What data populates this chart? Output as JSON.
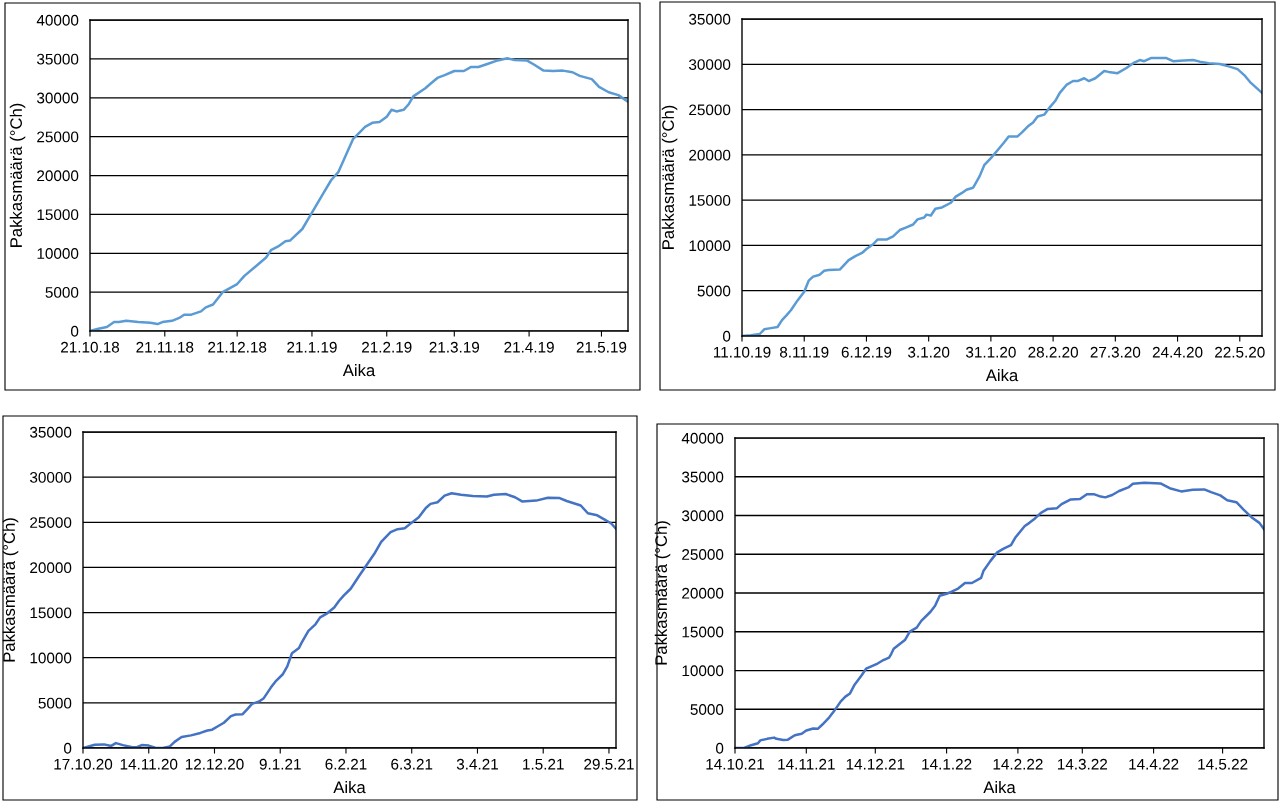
{
  "chart_data": [
    {
      "type": "line",
      "xlabel": "Aika",
      "ylabel": "Pakkasmäärä (°Ch)",
      "xlim": [
        "2018-10-21",
        "2019-06-01"
      ],
      "ylim": [
        0,
        40000
      ],
      "yticks": [
        0,
        5000,
        10000,
        15000,
        20000,
        25000,
        30000,
        35000,
        40000
      ],
      "xticks": [
        {
          "value": "2018-10-21",
          "label": "21.10.18"
        },
        {
          "value": "2018-11-21",
          "label": "21.11.18"
        },
        {
          "value": "2018-12-21",
          "label": "21.12.18"
        },
        {
          "value": "2019-01-21",
          "label": "21.1.19"
        },
        {
          "value": "2019-02-21",
          "label": "21.2.19"
        },
        {
          "value": "2019-03-21",
          "label": "21.3.19"
        },
        {
          "value": "2019-04-21",
          "label": "21.4.19"
        },
        {
          "value": "2019-05-21",
          "label": "21.5.19"
        }
      ],
      "grid": "y",
      "series": [
        {
          "color": "#5b9bd5",
          "x": [
            "2018-10-21",
            "2018-10-24",
            "2018-10-28",
            "2018-10-31",
            "2018-11-02",
            "2018-11-05",
            "2018-11-10",
            "2018-11-15",
            "2018-11-18",
            "2018-11-20",
            "2018-11-24",
            "2018-11-27",
            "2018-11-29",
            "2018-12-02",
            "2018-12-06",
            "2018-12-08",
            "2018-12-11",
            "2018-12-15",
            "2018-12-21",
            "2018-12-24",
            "2018-12-29",
            "2019-01-02",
            "2019-01-04",
            "2019-01-07",
            "2019-01-10",
            "2019-01-12",
            "2019-01-17",
            "2019-01-21",
            "2019-01-26",
            "2019-01-29",
            "2019-02-01",
            "2019-02-04",
            "2019-02-07",
            "2019-02-10",
            "2019-02-12",
            "2019-02-15",
            "2019-02-18",
            "2019-02-21",
            "2019-02-23",
            "2019-02-25",
            "2019-02-28",
            "2019-03-02",
            "2019-03-04",
            "2019-03-09",
            "2019-03-11",
            "2019-03-14",
            "2019-03-17",
            "2019-03-21",
            "2019-03-25",
            "2019-03-28",
            "2019-03-31",
            "2019-04-04",
            "2019-04-08",
            "2019-04-12",
            "2019-04-15",
            "2019-04-20",
            "2019-04-23",
            "2019-04-27",
            "2019-05-01",
            "2019-05-05",
            "2019-05-09",
            "2019-05-12",
            "2019-05-17",
            "2019-05-20",
            "2019-05-24",
            "2019-05-28",
            "2019-06-01"
          ],
          "values": [
            0,
            260,
            520,
            1150,
            1150,
            1310,
            1150,
            1050,
            890,
            1150,
            1310,
            1680,
            2100,
            2100,
            2520,
            3040,
            3410,
            4990,
            6040,
            7090,
            8400,
            9450,
            10390,
            10870,
            11550,
            11650,
            13120,
            15220,
            17850,
            19420,
            20470,
            22570,
            24670,
            25620,
            26250,
            26770,
            26880,
            27560,
            28450,
            28240,
            28450,
            29130,
            30180,
            31230,
            31760,
            32550,
            32910,
            33440,
            33440,
            33960,
            33960,
            34380,
            34800,
            35070,
            34860,
            34800,
            34280,
            33490,
            33440,
            33490,
            33280,
            32810,
            32390,
            31390,
            30710,
            30340,
            29500
          ]
        }
      ]
    },
    {
      "type": "line",
      "xlabel": "Aika",
      "ylabel": "Pakkasmäärä (°Ch)",
      "xlim": [
        "2019-10-11",
        "2020-06-01"
      ],
      "ylim": [
        0,
        35000
      ],
      "yticks": [
        0,
        5000,
        10000,
        15000,
        20000,
        25000,
        30000,
        35000
      ],
      "xticks": [
        {
          "value": "2019-10-11",
          "label": "11.10.19"
        },
        {
          "value": "2019-11-08",
          "label": "8.11.19"
        },
        {
          "value": "2019-12-06",
          "label": "6.12.19"
        },
        {
          "value": "2020-01-03",
          "label": "3.1.20"
        },
        {
          "value": "2020-01-31",
          "label": "31.1.20"
        },
        {
          "value": "2020-02-28",
          "label": "28.2.20"
        },
        {
          "value": "2020-03-27",
          "label": "27.3.20"
        },
        {
          "value": "2020-04-24",
          "label": "24.4.20"
        },
        {
          "value": "2020-05-22",
          "label": "22.5.20"
        }
      ],
      "grid": "y",
      "series": [
        {
          "color": "#5b9bd5",
          "x": [
            "2019-10-11",
            "2019-10-15",
            "2019-10-19",
            "2019-10-21",
            "2019-10-24",
            "2019-10-27",
            "2019-10-29",
            "2019-10-31",
            "2019-11-02",
            "2019-11-05",
            "2019-11-08",
            "2019-11-10",
            "2019-11-12",
            "2019-11-15",
            "2019-11-17",
            "2019-11-19",
            "2019-11-24",
            "2019-11-26",
            "2019-11-28",
            "2019-12-01",
            "2019-12-04",
            "2019-12-06",
            "2019-12-09",
            "2019-12-11",
            "2019-12-15",
            "2019-12-18",
            "2019-12-21",
            "2019-12-24",
            "2019-12-27",
            "2019-12-29",
            "2020-01-01",
            "2020-01-02",
            "2020-01-04",
            "2020-01-06",
            "2020-01-09",
            "2020-01-13",
            "2020-01-15",
            "2020-01-18",
            "2020-01-20",
            "2020-01-23",
            "2020-01-24",
            "2020-01-26",
            "2020-01-28",
            "2020-01-31",
            "2020-02-03",
            "2020-02-06",
            "2020-02-08",
            "2020-02-12",
            "2020-02-14",
            "2020-02-17",
            "2020-02-19",
            "2020-02-21",
            "2020-02-24",
            "2020-02-26",
            "2020-02-29",
            "2020-03-02",
            "2020-03-05",
            "2020-03-08",
            "2020-03-10",
            "2020-03-13",
            "2020-03-15",
            "2020-03-18",
            "2020-03-22",
            "2020-03-24",
            "2020-03-28",
            "2020-04-01",
            "2020-04-04",
            "2020-04-07",
            "2020-04-09",
            "2020-04-12",
            "2020-04-19",
            "2020-04-22",
            "2020-04-25",
            "2020-05-01",
            "2020-05-04",
            "2020-05-08",
            "2020-05-13",
            "2020-05-17",
            "2020-05-21",
            "2020-05-24",
            "2020-05-27",
            "2020-06-01"
          ],
          "values": [
            0,
            90,
            220,
            740,
            870,
            1000,
            1750,
            2270,
            2840,
            3930,
            4890,
            6110,
            6550,
            6770,
            7200,
            7290,
            7330,
            7860,
            8380,
            8820,
            9170,
            9600,
            10130,
            10650,
            10650,
            11000,
            11700,
            12000,
            12310,
            12880,
            13090,
            13400,
            13310,
            14050,
            14190,
            14710,
            15360,
            15800,
            16150,
            16370,
            16800,
            17680,
            18860,
            19640,
            20510,
            21390,
            22040,
            22040,
            22480,
            23220,
            23570,
            24230,
            24440,
            25100,
            25970,
            26840,
            27720,
            28150,
            28150,
            28460,
            28150,
            28460,
            29250,
            29160,
            29020,
            29590,
            30120,
            30470,
            30340,
            30690,
            30690,
            30340,
            30380,
            30470,
            30290,
            30120,
            30030,
            29770,
            29460,
            28810,
            27940,
            26840
          ]
        }
      ]
    },
    {
      "type": "line",
      "xlabel": "Aika",
      "ylabel": "Pakkasmäärä (°Ch)",
      "xlim": [
        "2020-10-17",
        "2021-06-01"
      ],
      "ylim": [
        0,
        35000
      ],
      "yticks": [
        0,
        5000,
        10000,
        15000,
        20000,
        25000,
        30000,
        35000
      ],
      "xticks": [
        {
          "value": "2020-10-17",
          "label": "17.10.20"
        },
        {
          "value": "2020-11-14",
          "label": "14.11.20"
        },
        {
          "value": "2020-12-12",
          "label": "12.12.20"
        },
        {
          "value": "2021-01-09",
          "label": "9.1.21"
        },
        {
          "value": "2021-02-06",
          "label": "6.2.21"
        },
        {
          "value": "2021-03-06",
          "label": "6.3.21"
        },
        {
          "value": "2021-04-03",
          "label": "3.4.21"
        },
        {
          "value": "2021-05-01",
          "label": "1.5.21"
        },
        {
          "value": "2021-05-29",
          "label": "29.5.21"
        }
      ],
      "grid": "y",
      "series": [
        {
          "color": "#4472c4",
          "x": [
            "2020-10-17",
            "2020-10-22",
            "2020-10-26",
            "2020-10-29",
            "2020-10-31",
            "2020-11-03",
            "2020-11-07",
            "2020-11-09",
            "2020-11-11",
            "2020-11-14",
            "2020-11-17",
            "2020-11-20",
            "2020-11-23",
            "2020-11-25",
            "2020-11-28",
            "2020-12-02",
            "2020-12-06",
            "2020-12-09",
            "2020-12-11",
            "2020-12-14",
            "2020-12-16",
            "2020-12-19",
            "2020-12-21",
            "2020-12-24",
            "2020-12-26",
            "2020-12-28",
            "2020-12-31",
            "2021-01-02",
            "2021-01-05",
            "2021-01-07",
            "2021-01-10",
            "2021-01-12",
            "2021-01-14",
            "2021-01-17",
            "2021-01-18",
            "2021-01-21",
            "2021-01-24",
            "2021-01-26",
            "2021-01-29",
            "2021-02-01",
            "2021-02-03",
            "2021-02-05",
            "2021-02-08",
            "2021-02-12",
            "2021-02-15",
            "2021-02-18",
            "2021-02-21",
            "2021-02-25",
            "2021-02-28",
            "2021-03-03",
            "2021-03-06",
            "2021-03-09",
            "2021-03-12",
            "2021-03-14",
            "2021-03-17",
            "2021-03-20",
            "2021-03-23",
            "2021-03-27",
            "2021-04-01",
            "2021-04-07",
            "2021-04-10",
            "2021-04-15",
            "2021-04-19",
            "2021-04-22",
            "2021-04-28",
            "2021-05-03",
            "2021-05-08",
            "2021-05-11",
            "2021-05-17",
            "2021-05-20",
            "2021-05-24",
            "2021-05-27",
            "2021-05-30",
            "2021-06-01"
          ],
          "values": [
            0,
            360,
            400,
            230,
            540,
            320,
            90,
            90,
            320,
            270,
            0,
            0,
            180,
            680,
            1220,
            1400,
            1670,
            1940,
            2030,
            2490,
            2800,
            3530,
            3710,
            3750,
            4300,
            4880,
            5160,
            5520,
            6690,
            7370,
            8140,
            9040,
            10490,
            11080,
            11620,
            12980,
            13700,
            14470,
            14920,
            15560,
            16280,
            16870,
            17640,
            19220,
            20350,
            21480,
            22840,
            23920,
            24240,
            24330,
            24960,
            25550,
            26590,
            27040,
            27220,
            27950,
            28220,
            28040,
            27900,
            27860,
            28040,
            28130,
            27770,
            27310,
            27400,
            27720,
            27680,
            27360,
            26860,
            26000,
            25770,
            25320,
            24870,
            24280
          ]
        }
      ]
    },
    {
      "type": "line",
      "xlabel": "Aika",
      "ylabel": "Pakkasmäärä (°Ch)",
      "xlim": [
        "2021-10-14",
        "2022-06-01"
      ],
      "ylim": [
        0,
        40000
      ],
      "yticks": [
        0,
        5000,
        10000,
        15000,
        20000,
        25000,
        30000,
        35000,
        40000
      ],
      "xticks": [
        {
          "value": "2021-10-14",
          "label": "14.10.21"
        },
        {
          "value": "2021-11-14",
          "label": "14.11.21"
        },
        {
          "value": "2021-12-14",
          "label": "14.12.21"
        },
        {
          "value": "2022-01-14",
          "label": "14.1.22"
        },
        {
          "value": "2022-02-14",
          "label": "14.2.22"
        },
        {
          "value": "2022-03-14",
          "label": "14.3.22"
        },
        {
          "value": "2022-04-14",
          "label": "14.4.22"
        },
        {
          "value": "2022-05-14",
          "label": "14.5.22"
        }
      ],
      "grid": "y",
      "series": [
        {
          "color": "#4472c4",
          "x": [
            "2021-10-14",
            "2021-10-18",
            "2021-10-21",
            "2021-10-24",
            "2021-10-25",
            "2021-10-28",
            "2021-10-31",
            "2021-11-01",
            "2021-11-04",
            "2021-11-06",
            "2021-11-09",
            "2021-11-12",
            "2021-11-14",
            "2021-11-17",
            "2021-11-19",
            "2021-11-21",
            "2021-11-24",
            "2021-11-26",
            "2021-11-29",
            "2021-12-01",
            "2021-12-03",
            "2021-12-05",
            "2021-12-08",
            "2021-12-10",
            "2021-12-13",
            "2021-12-15",
            "2021-12-17",
            "2021-12-20",
            "2021-12-21",
            "2021-12-22",
            "2021-12-27",
            "2021-12-29",
            "2022-01-01",
            "2022-01-03",
            "2022-01-07",
            "2022-01-09",
            "2022-01-11",
            "2022-01-14",
            "2022-01-16",
            "2022-01-19",
            "2022-01-22",
            "2022-01-25",
            "2022-01-29",
            "2022-01-30",
            "2022-02-02",
            "2022-02-05",
            "2022-02-08",
            "2022-02-11",
            "2022-02-13",
            "2022-02-17",
            "2022-02-19",
            "2022-02-21",
            "2022-02-24",
            "2022-02-27",
            "2022-03-03",
            "2022-03-05",
            "2022-03-09",
            "2022-03-13",
            "2022-03-16",
            "2022-03-19",
            "2022-03-22",
            "2022-03-24",
            "2022-03-27",
            "2022-03-30",
            "2022-04-03",
            "2022-04-05",
            "2022-04-10",
            "2022-04-17",
            "2022-04-21",
            "2022-04-26",
            "2022-05-01",
            "2022-05-06",
            "2022-05-09",
            "2022-05-13",
            "2022-05-16",
            "2022-05-20",
            "2022-05-23",
            "2022-05-27",
            "2022-05-30",
            "2022-06-01"
          ],
          "values": [
            0,
            0,
            360,
            620,
            980,
            1180,
            1340,
            1180,
            1030,
            1080,
            1650,
            1850,
            2260,
            2520,
            2470,
            3030,
            3960,
            4730,
            6020,
            6630,
            7040,
            8170,
            9360,
            10230,
            10640,
            10900,
            11260,
            11670,
            12190,
            12800,
            13980,
            15010,
            15530,
            16400,
            17580,
            18350,
            19640,
            19900,
            20150,
            20570,
            21290,
            21290,
            21950,
            22830,
            24110,
            25240,
            25760,
            26170,
            27200,
            28640,
            29050,
            29510,
            30330,
            30850,
            30950,
            31470,
            32080,
            32130,
            32750,
            32750,
            32440,
            32340,
            32650,
            33160,
            33620,
            34090,
            34240,
            34140,
            33520,
            33110,
            33320,
            33370,
            33010,
            32600,
            31980,
            31720,
            30800,
            29670,
            29050,
            28230
          ]
        }
      ]
    }
  ]
}
